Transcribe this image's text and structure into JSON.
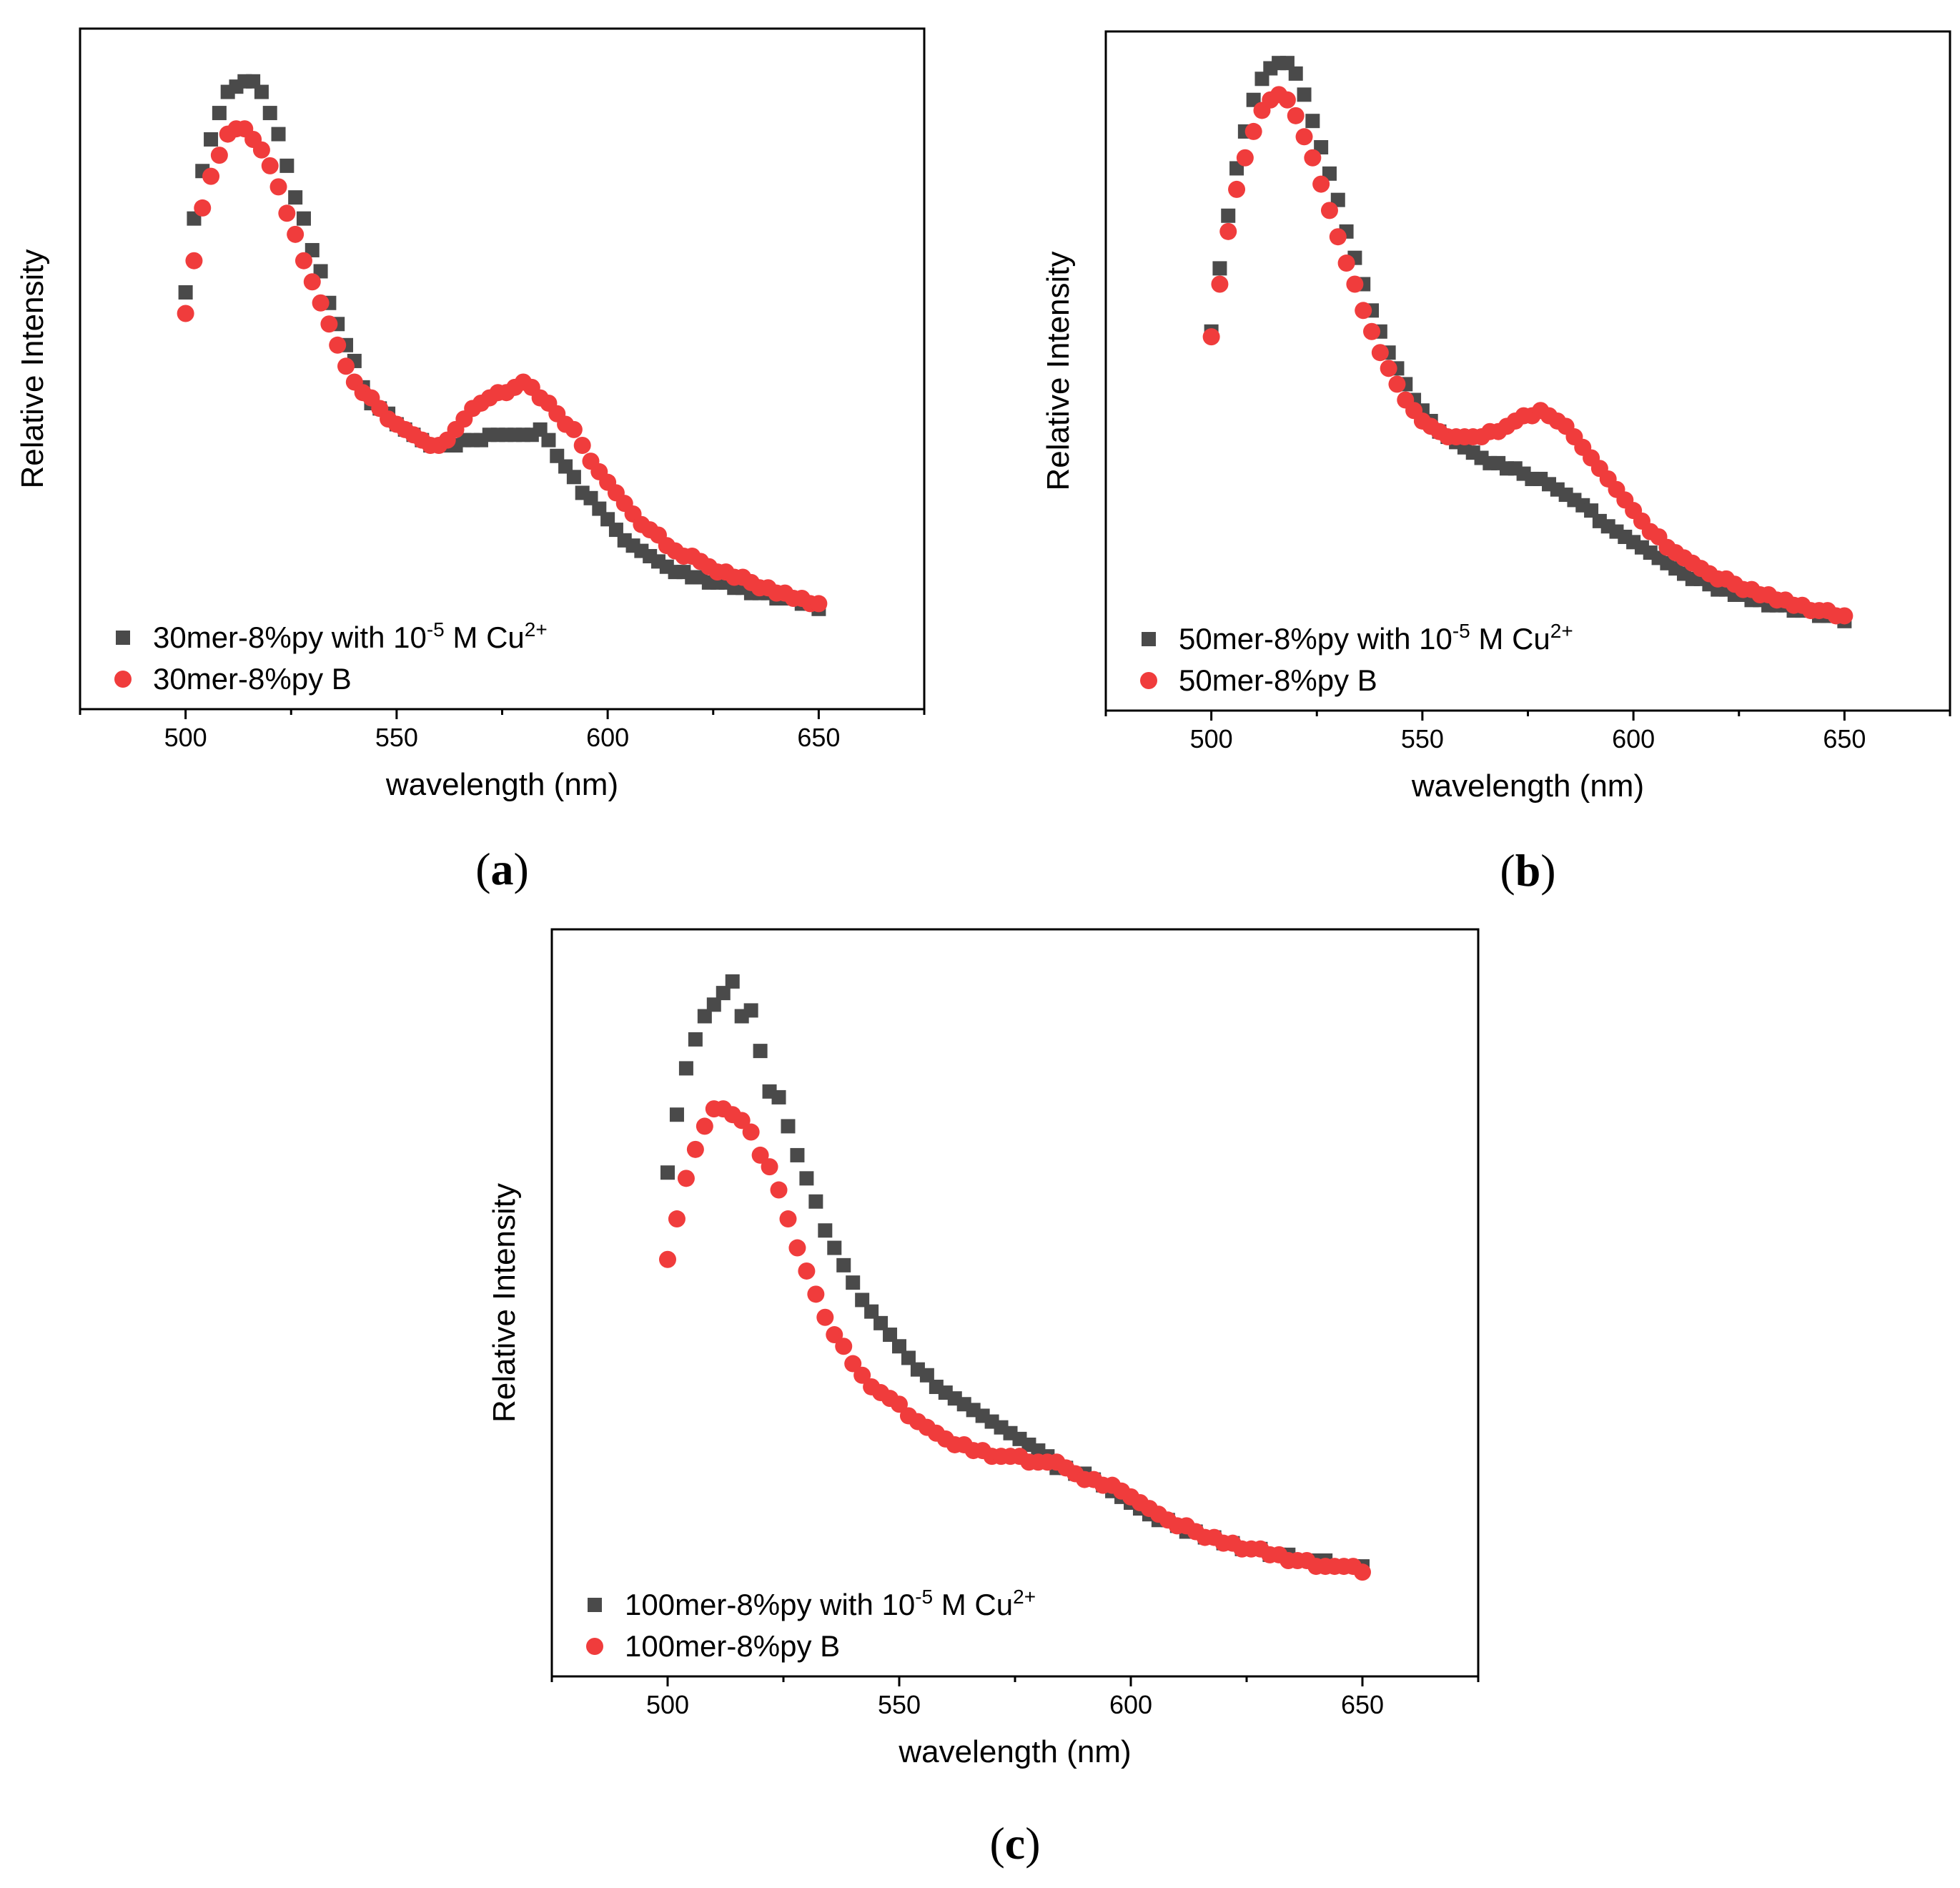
{
  "colors": {
    "series_cu": "#4a4a4a",
    "series_b": "#f03c3c",
    "axis": "#000000"
  },
  "chart_data": [
    {
      "type": "scatter",
      "panel": "a",
      "panel_label": "a",
      "xlabel": "wavelength (nm)",
      "ylabel": "Relative Intensity",
      "xlim": [
        475,
        675
      ],
      "ylim": [
        -0.17,
        1.12
      ],
      "xticks": [
        500,
        550,
        600,
        650
      ],
      "xtick_labels": [
        "500",
        "550",
        "600",
        "650"
      ],
      "legend_position": "bottom-left",
      "series": [
        {
          "name": "30mer-8%py with 10-5 M Cu2+",
          "label_base": "30mer-8%py with 10",
          "label_exp": "-5",
          "label_mid": " M Cu",
          "label_ion": "2+",
          "marker": "square",
          "x": [
            500,
            502,
            504,
            506,
            508,
            510,
            512,
            514,
            516,
            518,
            520,
            522,
            524,
            526,
            528,
            530,
            532,
            534,
            536,
            538,
            540,
            542,
            544,
            546,
            548,
            550,
            552,
            554,
            556,
            558,
            560,
            562,
            564,
            566,
            568,
            570,
            572,
            574,
            576,
            578,
            580,
            582,
            584,
            586,
            588,
            590,
            592,
            594,
            596,
            598,
            600,
            602,
            604,
            606,
            608,
            610,
            612,
            614,
            616,
            618,
            620,
            622,
            624,
            626,
            628,
            630,
            632,
            634,
            636,
            638,
            640,
            642,
            644,
            646,
            648,
            650
          ],
          "y": [
            0.62,
            0.76,
            0.85,
            0.91,
            0.96,
            1.0,
            1.01,
            1.02,
            1.02,
            1.0,
            0.96,
            0.92,
            0.86,
            0.8,
            0.76,
            0.7,
            0.66,
            0.6,
            0.56,
            0.52,
            0.49,
            0.44,
            0.41,
            0.4,
            0.39,
            0.37,
            0.36,
            0.35,
            0.34,
            0.33,
            0.33,
            0.33,
            0.33,
            0.34,
            0.34,
            0.34,
            0.35,
            0.35,
            0.35,
            0.35,
            0.35,
            0.35,
            0.36,
            0.34,
            0.31,
            0.29,
            0.27,
            0.24,
            0.23,
            0.21,
            0.19,
            0.17,
            0.15,
            0.14,
            0.13,
            0.12,
            0.11,
            0.1,
            0.09,
            0.09,
            0.08,
            0.08,
            0.07,
            0.07,
            0.07,
            0.06,
            0.06,
            0.05,
            0.05,
            0.05,
            0.04,
            0.04,
            0.04,
            0.03,
            0.03,
            0.02
          ]
        },
        {
          "name": "30mer-8%py B",
          "label_base": "30mer-8%py B",
          "marker": "circle",
          "x": [
            500,
            502,
            504,
            506,
            508,
            510,
            512,
            514,
            516,
            518,
            520,
            522,
            524,
            526,
            528,
            530,
            532,
            534,
            536,
            538,
            540,
            542,
            544,
            546,
            548,
            550,
            552,
            554,
            556,
            558,
            560,
            562,
            564,
            566,
            568,
            570,
            572,
            574,
            576,
            578,
            580,
            582,
            584,
            586,
            588,
            590,
            592,
            594,
            596,
            598,
            600,
            602,
            604,
            606,
            608,
            610,
            612,
            614,
            616,
            618,
            620,
            622,
            624,
            626,
            628,
            630,
            632,
            634,
            636,
            638,
            640,
            642,
            644,
            646,
            648,
            650
          ],
          "y": [
            0.58,
            0.68,
            0.78,
            0.84,
            0.88,
            0.92,
            0.93,
            0.93,
            0.91,
            0.89,
            0.86,
            0.82,
            0.77,
            0.73,
            0.68,
            0.64,
            0.6,
            0.56,
            0.52,
            0.48,
            0.45,
            0.43,
            0.42,
            0.4,
            0.38,
            0.37,
            0.36,
            0.35,
            0.34,
            0.33,
            0.33,
            0.34,
            0.36,
            0.38,
            0.4,
            0.41,
            0.42,
            0.43,
            0.43,
            0.44,
            0.45,
            0.44,
            0.42,
            0.41,
            0.39,
            0.37,
            0.36,
            0.33,
            0.3,
            0.28,
            0.26,
            0.24,
            0.22,
            0.2,
            0.18,
            0.17,
            0.16,
            0.14,
            0.13,
            0.12,
            0.12,
            0.11,
            0.1,
            0.09,
            0.09,
            0.08,
            0.08,
            0.07,
            0.06,
            0.06,
            0.05,
            0.05,
            0.04,
            0.04,
            0.03,
            0.03
          ]
        }
      ]
    },
    {
      "type": "scatter",
      "panel": "b",
      "panel_label": "b",
      "xlabel": "wavelength (nm)",
      "ylabel": "Relative Intensity",
      "xlim": [
        475,
        675
      ],
      "ylim": [
        -0.17,
        1.12
      ],
      "xticks": [
        500,
        550,
        600,
        650
      ],
      "xtick_labels": [
        "500",
        "550",
        "600",
        "650"
      ],
      "legend_position": "bottom-left",
      "series": [
        {
          "name": "50mer-8%py with 10-5 M Cu2+",
          "label_base": "50mer-8%py with 10",
          "label_exp": "-5",
          "label_mid": " M Cu",
          "label_ion": "2+",
          "marker": "square",
          "x": [
            500,
            502,
            504,
            506,
            508,
            510,
            512,
            514,
            516,
            518,
            520,
            522,
            524,
            526,
            528,
            530,
            532,
            534,
            536,
            538,
            540,
            542,
            544,
            546,
            548,
            550,
            552,
            554,
            556,
            558,
            560,
            562,
            564,
            566,
            568,
            570,
            572,
            574,
            576,
            578,
            580,
            582,
            584,
            586,
            588,
            590,
            592,
            594,
            596,
            598,
            600,
            602,
            604,
            606,
            608,
            610,
            612,
            614,
            616,
            618,
            620,
            622,
            624,
            626,
            628,
            630,
            632,
            634,
            636,
            638,
            640,
            642,
            644,
            646,
            648,
            650
          ],
          "y": [
            0.55,
            0.67,
            0.77,
            0.86,
            0.93,
            0.99,
            1.03,
            1.05,
            1.06,
            1.06,
            1.04,
            1.0,
            0.95,
            0.9,
            0.85,
            0.8,
            0.74,
            0.69,
            0.64,
            0.59,
            0.55,
            0.51,
            0.48,
            0.45,
            0.42,
            0.4,
            0.38,
            0.36,
            0.35,
            0.34,
            0.33,
            0.32,
            0.31,
            0.3,
            0.3,
            0.29,
            0.29,
            0.28,
            0.27,
            0.27,
            0.26,
            0.25,
            0.24,
            0.23,
            0.22,
            0.21,
            0.19,
            0.18,
            0.17,
            0.16,
            0.15,
            0.14,
            0.13,
            0.12,
            0.11,
            0.1,
            0.09,
            0.08,
            0.08,
            0.07,
            0.06,
            0.06,
            0.05,
            0.05,
            0.04,
            0.04,
            0.03,
            0.03,
            0.03,
            0.02,
            0.02,
            0.02,
            0.01,
            0.01,
            0.01,
            0.0
          ]
        },
        {
          "name": "50mer-8%py B",
          "label_base": "50mer-8%py B",
          "marker": "circle",
          "x": [
            500,
            502,
            504,
            506,
            508,
            510,
            512,
            514,
            516,
            518,
            520,
            522,
            524,
            526,
            528,
            530,
            532,
            534,
            536,
            538,
            540,
            542,
            544,
            546,
            548,
            550,
            552,
            554,
            556,
            558,
            560,
            562,
            564,
            566,
            568,
            570,
            572,
            574,
            576,
            578,
            580,
            582,
            584,
            586,
            588,
            590,
            592,
            594,
            596,
            598,
            600,
            602,
            604,
            606,
            608,
            610,
            612,
            614,
            616,
            618,
            620,
            622,
            624,
            626,
            628,
            630,
            632,
            634,
            636,
            638,
            640,
            642,
            644,
            646,
            648,
            650
          ],
          "y": [
            0.54,
            0.64,
            0.74,
            0.82,
            0.88,
            0.93,
            0.97,
            0.99,
            1.0,
            0.99,
            0.96,
            0.92,
            0.88,
            0.83,
            0.78,
            0.73,
            0.68,
            0.64,
            0.59,
            0.55,
            0.51,
            0.48,
            0.45,
            0.42,
            0.4,
            0.38,
            0.37,
            0.36,
            0.35,
            0.35,
            0.35,
            0.35,
            0.35,
            0.36,
            0.36,
            0.37,
            0.38,
            0.39,
            0.39,
            0.4,
            0.39,
            0.38,
            0.37,
            0.35,
            0.33,
            0.31,
            0.29,
            0.27,
            0.25,
            0.23,
            0.21,
            0.19,
            0.17,
            0.16,
            0.14,
            0.13,
            0.12,
            0.11,
            0.1,
            0.09,
            0.08,
            0.08,
            0.07,
            0.06,
            0.06,
            0.05,
            0.05,
            0.04,
            0.04,
            0.03,
            0.03,
            0.02,
            0.02,
            0.02,
            0.01,
            0.01
          ]
        }
      ]
    },
    {
      "type": "scatter",
      "panel": "c",
      "panel_label": "c",
      "xlabel": "wavelength (nm)",
      "ylabel": "Relative Intensity",
      "xlim": [
        475,
        675
      ],
      "ylim": [
        -0.17,
        1.12
      ],
      "xticks": [
        500,
        550,
        600,
        650
      ],
      "xtick_labels": [
        "500",
        "550",
        "600",
        "650"
      ],
      "legend_position": "bottom-left",
      "series": [
        {
          "name": "100mer-8%py with 10-5 M Cu2+",
          "label_base": "100mer-8%py with 10",
          "label_exp": "-5",
          "label_mid": " M Cu",
          "label_ion": "2+",
          "marker": "square",
          "x": [
            500,
            502,
            504,
            506,
            508,
            510,
            512,
            514,
            516,
            518,
            520,
            522,
            524,
            526,
            528,
            530,
            532,
            534,
            536,
            538,
            540,
            542,
            544,
            546,
            548,
            550,
            552,
            554,
            556,
            558,
            560,
            562,
            564,
            566,
            568,
            570,
            572,
            574,
            576,
            578,
            580,
            582,
            584,
            586,
            588,
            590,
            592,
            594,
            596,
            598,
            600,
            602,
            604,
            606,
            608,
            610,
            612,
            614,
            616,
            618,
            620,
            622,
            624,
            626,
            628,
            630,
            632,
            634,
            636,
            638,
            640,
            642,
            644,
            646,
            648,
            650
          ],
          "y": [
            0.7,
            0.8,
            0.88,
            0.93,
            0.97,
            0.99,
            1.01,
            1.03,
            0.97,
            0.98,
            0.91,
            0.84,
            0.83,
            0.78,
            0.73,
            0.69,
            0.65,
            0.6,
            0.57,
            0.54,
            0.51,
            0.48,
            0.46,
            0.44,
            0.42,
            0.4,
            0.38,
            0.36,
            0.35,
            0.33,
            0.32,
            0.31,
            0.3,
            0.29,
            0.28,
            0.27,
            0.26,
            0.25,
            0.24,
            0.23,
            0.22,
            0.21,
            0.19,
            0.19,
            0.18,
            0.18,
            0.17,
            0.16,
            0.15,
            0.14,
            0.13,
            0.12,
            0.11,
            0.1,
            0.1,
            0.09,
            0.08,
            0.08,
            0.07,
            0.07,
            0.06,
            0.06,
            0.05,
            0.05,
            0.05,
            0.04,
            0.04,
            0.04,
            0.03,
            0.03,
            0.03,
            0.03,
            0.02,
            0.02,
            0.02,
            0.02
          ]
        },
        {
          "name": "100mer-8%py B",
          "label_base": "100mer-8%py B",
          "marker": "circle",
          "x": [
            500,
            502,
            504,
            506,
            508,
            510,
            512,
            514,
            516,
            518,
            520,
            522,
            524,
            526,
            528,
            530,
            532,
            534,
            536,
            538,
            540,
            542,
            544,
            546,
            548,
            550,
            552,
            554,
            556,
            558,
            560,
            562,
            564,
            566,
            568,
            570,
            572,
            574,
            576,
            578,
            580,
            582,
            584,
            586,
            588,
            590,
            592,
            594,
            596,
            598,
            600,
            602,
            604,
            606,
            608,
            610,
            612,
            614,
            616,
            618,
            620,
            622,
            624,
            626,
            628,
            630,
            632,
            634,
            636,
            638,
            640,
            642,
            644,
            646,
            648,
            650
          ],
          "y": [
            0.55,
            0.62,
            0.69,
            0.74,
            0.78,
            0.81,
            0.81,
            0.8,
            0.79,
            0.77,
            0.73,
            0.71,
            0.67,
            0.62,
            0.57,
            0.53,
            0.49,
            0.45,
            0.42,
            0.4,
            0.37,
            0.35,
            0.33,
            0.32,
            0.31,
            0.3,
            0.28,
            0.27,
            0.26,
            0.25,
            0.24,
            0.23,
            0.23,
            0.22,
            0.22,
            0.21,
            0.21,
            0.21,
            0.21,
            0.2,
            0.2,
            0.2,
            0.2,
            0.19,
            0.18,
            0.17,
            0.17,
            0.16,
            0.16,
            0.15,
            0.14,
            0.13,
            0.12,
            0.11,
            0.1,
            0.09,
            0.09,
            0.08,
            0.07,
            0.07,
            0.06,
            0.06,
            0.05,
            0.05,
            0.05,
            0.04,
            0.04,
            0.03,
            0.03,
            0.03,
            0.02,
            0.02,
            0.02,
            0.02,
            0.02,
            0.01
          ]
        }
      ]
    }
  ]
}
